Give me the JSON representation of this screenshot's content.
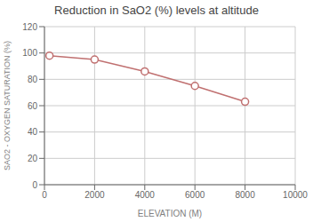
{
  "chart_data": {
    "type": "line",
    "title": "Reduction in SaO2 (%) levels at altitude",
    "xlabel": "ELEVATION (M)",
    "ylabel": "SAO2 - OXYGEN SATURATION (%)",
    "x": [
      200,
      2000,
      4000,
      6000,
      8000
    ],
    "values": [
      98,
      95,
      86,
      75,
      63
    ],
    "color": "#c07070",
    "marker": "circle",
    "xlim": [
      0,
      10000
    ],
    "ylim": [
      0,
      120
    ],
    "xticks": [
      0,
      2000,
      4000,
      6000,
      8000,
      10000
    ],
    "yticks": [
      0,
      20,
      40,
      60,
      80,
      100,
      120
    ],
    "grid": true
  }
}
